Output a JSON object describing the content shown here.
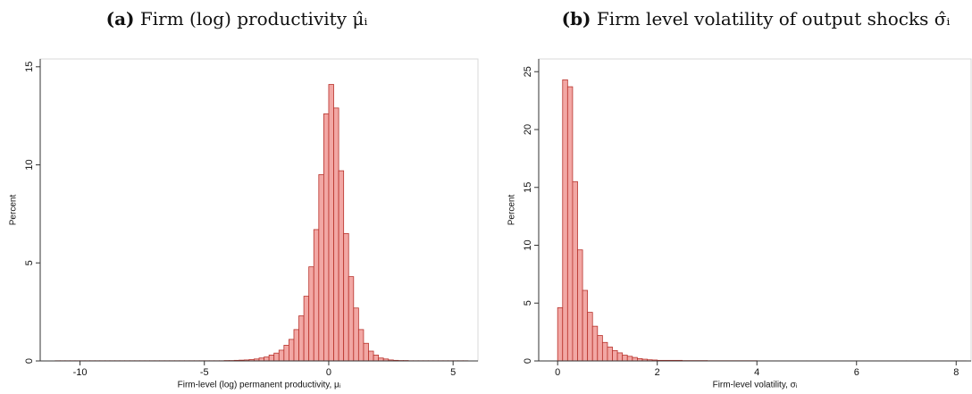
{
  "chart_data": [
    {
      "type": "histogram",
      "title_label": "(a)",
      "title": "Firm (log) productivity μ̂ᵢ",
      "x_label": "Firm-level (log) permanent productivity, μᵢ",
      "y_label": "Percent",
      "bins": [
        -11,
        -10.8,
        -10.6,
        -10.4,
        -10.2,
        -10,
        -9.8,
        -9.6,
        -9.4,
        -9.2,
        -9,
        -8.8,
        -8.6,
        -8.4,
        -8.2,
        -8,
        -7.8,
        -7.6,
        -7.4,
        -7.2,
        -7,
        -6.8,
        -6.6,
        -6.4,
        -6.2,
        -6,
        -5.8,
        -5.6,
        -5.4,
        -5.2,
        -5,
        -4.8,
        -4.6,
        -4.4,
        -4.2,
        -4,
        -3.8,
        -3.6,
        -3.4,
        -3.2,
        -3,
        -2.8,
        -2.6,
        -2.4,
        -2.2,
        -2,
        -1.8,
        -1.6,
        -1.4,
        -1.2,
        -1,
        -0.8,
        -0.6,
        -0.4,
        -0.2,
        0,
        0.2,
        0.4,
        0.6,
        0.8,
        1,
        1.2,
        1.4,
        1.6,
        1.8,
        2,
        2.2,
        2.4,
        2.6,
        2.8,
        3,
        3.2,
        3.4,
        3.6,
        3.8,
        4,
        4.2,
        4.4,
        4.6,
        4.8,
        5,
        5.2,
        5.4,
        5.6
      ],
      "counts": [
        0.01,
        0.01,
        0.01,
        0.01,
        0.01,
        0.01,
        0.01,
        0.01,
        0.01,
        0.01,
        0.01,
        0.01,
        0.01,
        0.01,
        0.01,
        0.01,
        0.01,
        0.01,
        0.01,
        0.01,
        0.01,
        0.01,
        0.01,
        0.01,
        0.01,
        0.01,
        0.01,
        0.01,
        0.01,
        0.01,
        0.01,
        0.01,
        0.01,
        0.01,
        0.02,
        0.02,
        0.03,
        0.04,
        0.05,
        0.07,
        0.1,
        0.15,
        0.2,
        0.3,
        0.4,
        0.55,
        0.8,
        1.1,
        1.6,
        2.3,
        3.3,
        4.8,
        6.7,
        9.5,
        12.6,
        14.1,
        12.9,
        9.7,
        6.5,
        4.3,
        2.7,
        1.6,
        0.9,
        0.5,
        0.3,
        0.15,
        0.1,
        0.05,
        0.03,
        0.02,
        0.02,
        0.01,
        0.01,
        0.01,
        0.01,
        0.01,
        0.01,
        0.01,
        0.01,
        0.01,
        0.01,
        0.01,
        0.01
      ],
      "xlim": [
        -11.6,
        6
      ],
      "xticks": [
        -10,
        -5,
        0,
        5
      ],
      "ylim": [
        0,
        15.4
      ],
      "yticks": [
        0,
        5,
        10,
        15
      ],
      "grid": false,
      "color": "#f2a7a4",
      "edge_color": "#b8322b"
    },
    {
      "type": "histogram",
      "title_label": "(b)",
      "title": "Firm level volatility of output shocks σ̂ᵢ",
      "x_label": "Firm-level volatility, σᵢ",
      "y_label": "Percent",
      "bins": [
        0,
        0.1,
        0.2,
        0.3,
        0.4,
        0.5,
        0.6,
        0.7,
        0.8,
        0.9,
        1,
        1.1,
        1.2,
        1.3,
        1.4,
        1.5,
        1.6,
        1.7,
        1.8,
        1.9,
        2,
        2.5,
        3,
        4,
        5,
        6,
        7,
        8.2
      ],
      "counts": [
        4.6,
        24.3,
        23.7,
        15.5,
        9.6,
        6.1,
        4.2,
        3,
        2.2,
        1.6,
        1.2,
        0.9,
        0.7,
        0.5,
        0.4,
        0.3,
        0.2,
        0.15,
        0.1,
        0.08,
        0.05,
        0.03,
        0.02,
        0.01,
        0.01,
        0.01,
        0.01
      ],
      "xlim": [
        -0.38,
        8.3
      ],
      "xticks": [
        0,
        2,
        4,
        6,
        8
      ],
      "ylim": [
        0,
        26.1
      ],
      "yticks": [
        0,
        5,
        10,
        15,
        20,
        25
      ],
      "grid": false,
      "color": "#f2a7a4",
      "edge_color": "#b8322b"
    }
  ]
}
